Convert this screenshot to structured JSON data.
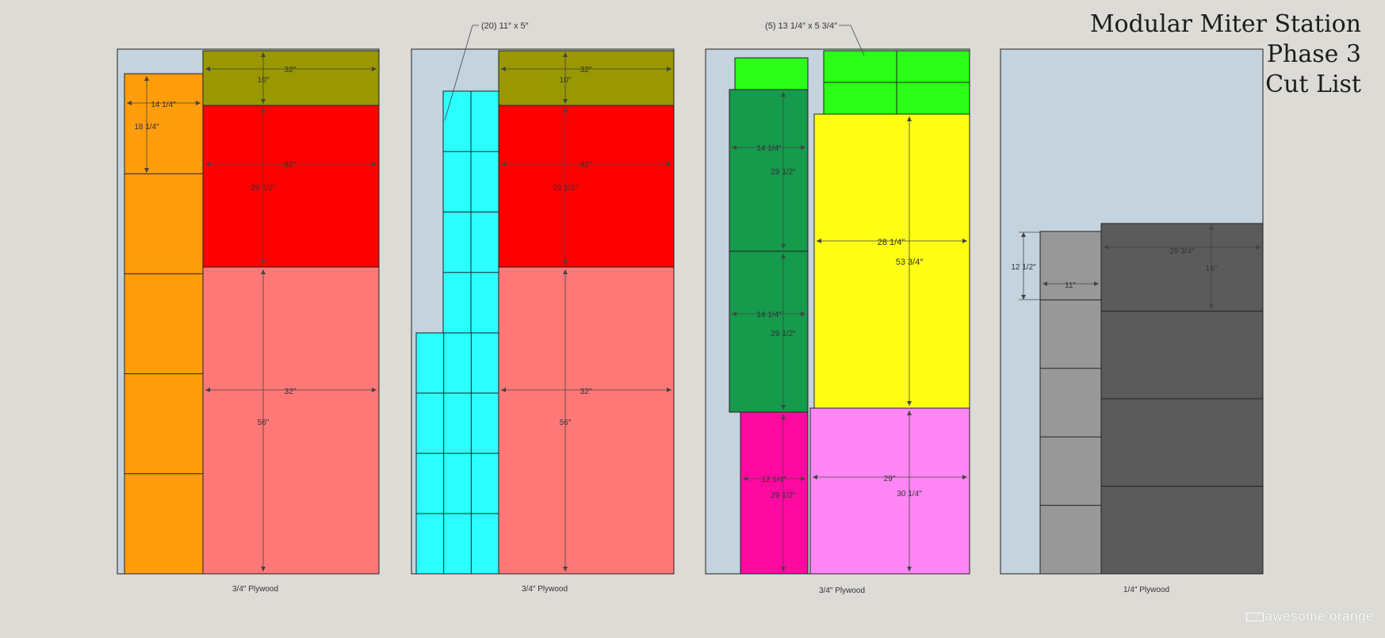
{
  "title": {
    "line1": "Modular Miter Station",
    "line2": "Phase 3",
    "line3": "Cut List"
  },
  "brand": {
    "prefix": "THE",
    "name": "awesome orange"
  },
  "callouts": {
    "sheet2": "(20) 11″ x 5″",
    "sheet3": "(5) 13 1/4″ x 5 3/4″"
  },
  "sheets": [
    {
      "label": "3/4″ Plywood",
      "pieces": [
        {
          "color": "#ff9d0d",
          "dims": [
            "14 1/4″",
            "18 1/4″"
          ]
        },
        {
          "color": "#999800",
          "dims": [
            "32″",
            "10″"
          ]
        },
        {
          "color": "#ff0000",
          "dims": [
            "32″",
            "29 1/2″"
          ]
        },
        {
          "color": "#ff7878",
          "dims": [
            "32″",
            "56″"
          ]
        }
      ]
    },
    {
      "label": "3/4″ Plywood",
      "pieces": [
        {
          "color": "#2bffff",
          "dims": []
        },
        {
          "color": "#999800",
          "dims": [
            "32″",
            "10″"
          ]
        },
        {
          "color": "#ff0000",
          "dims": [
            "32″",
            "29 1/2″"
          ]
        },
        {
          "color": "#ff7878",
          "dims": [
            "32″",
            "56″"
          ]
        }
      ]
    },
    {
      "label": "3/4″ Plywood",
      "pieces": [
        {
          "color": "#2bff17",
          "dims": []
        },
        {
          "color": "#169a4c",
          "dims": [
            "14 1/4″",
            "29 1/2″"
          ]
        },
        {
          "color": "#169a4c",
          "dims": [
            "14 1/4″",
            "29 1/2″"
          ]
        },
        {
          "color": "#ffff14",
          "dims": [
            "28 1/4″",
            "53 3/4″"
          ]
        },
        {
          "color": "#ff0aa0",
          "dims": [
            "12 1/4″",
            "29 1/2″"
          ]
        },
        {
          "color": "#ff86f4",
          "dims": [
            "29″",
            "30 1/4″"
          ]
        }
      ]
    },
    {
      "label": "1/4″ Plywood",
      "pieces": [
        {
          "color": "#989898",
          "dims": [
            "12 1/2″",
            "11″"
          ]
        },
        {
          "color": "#5b5b5b",
          "dims": [
            "29 3/4″",
            "16″"
          ]
        }
      ]
    }
  ],
  "colors": {
    "background": "#dddbd5",
    "sheet": "#c4d3dd"
  }
}
